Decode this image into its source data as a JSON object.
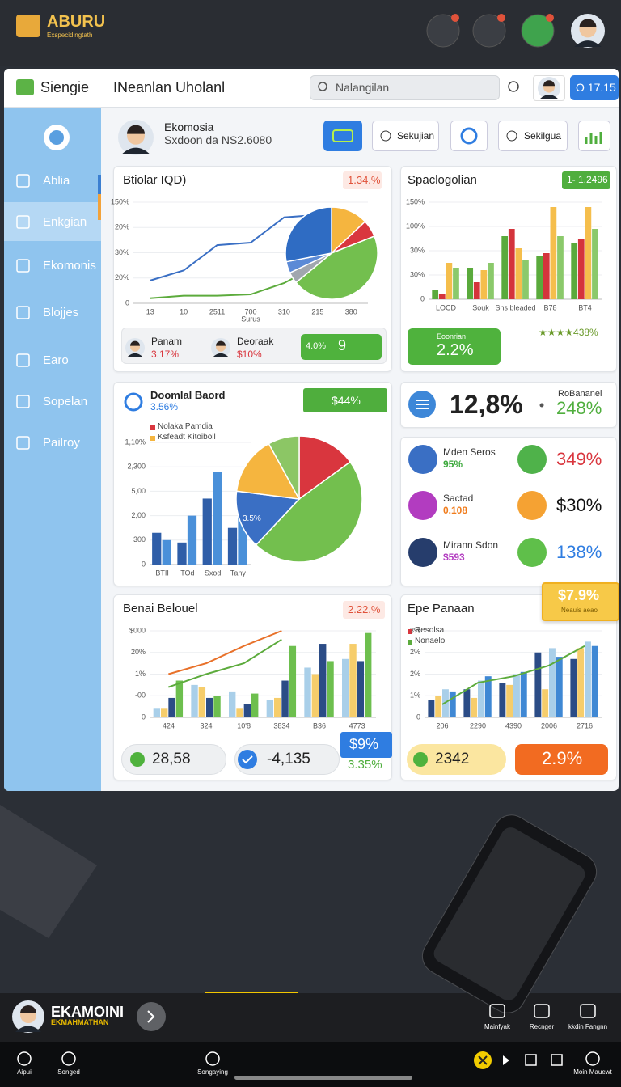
{
  "top_bar": {
    "logo": "ABURU",
    "logo_sub": "Exspecidingtath"
  },
  "app_header": {
    "brand": "Siengie",
    "title": "INeanlan Uholanl",
    "search": "Nalangilan",
    "badge": "O 17.15"
  },
  "sidebar": {
    "items": [
      "Ablia",
      "Enkgian",
      "Ekomonis",
      "Blojjes",
      "Earo",
      "Sopelan",
      "Pailroy"
    ]
  },
  "profile": {
    "name": "Ekomosia",
    "detail": "Sxdoon da NS2.6080",
    "buttons": [
      "Sekujian",
      "Sekilgua"
    ]
  },
  "panel_1": {
    "title": "Btiolar IQD)",
    "badge": "1.34.%",
    "line_chart": {
      "type": "line",
      "categories": [
        "13",
        "10",
        "2511",
        "700",
        "310",
        "215",
        "380"
      ],
      "xlabel": "Surus",
      "ylim": [
        0,
        4
      ],
      "yticks": [
        0,
        {
          "value": 1,
          "label": "20%"
        },
        {
          "value": 2,
          "label": "30%"
        },
        {
          "value": 3,
          "label": "20%"
        },
        {
          "value": 4,
          "label": "150%"
        }
      ],
      "series": [
        {
          "color": "#3a6fc4",
          "values": [
            0.9,
            1.3,
            2.3,
            2.4,
            3.4,
            3.5,
            null
          ]
        },
        {
          "color": "#5cab3c",
          "values": [
            0.2,
            0.3,
            0.3,
            0.35,
            0.8,
            1.5,
            3.0
          ]
        }
      ]
    },
    "pie_chart": {
      "type": "pie",
      "values": [
        13,
        6,
        45,
        4,
        4,
        28
      ],
      "colors": [
        "#f5b53f",
        "#d9363e",
        "#73bf4e",
        "#a0a6ae",
        "#5b8ad6",
        "#2f6cc3"
      ]
    },
    "people": [
      {
        "name": "Panam",
        "value": "3.17%"
      },
      {
        "name": "Deoraak",
        "value": "$10%"
      }
    ],
    "pill": {
      "label": "4.0%",
      "value": "9"
    }
  },
  "panel_2": {
    "title": "Spaclogolian",
    "badge": "1- 1.2496",
    "bar_chart": {
      "type": "bar",
      "categories": [
        "LOCD",
        "Souk",
        "Sns bleaded",
        "B78",
        "BT4"
      ],
      "ylim": [
        0,
        4
      ],
      "yticks": [
        0,
        {
          "value": 1,
          "label": "30%"
        },
        {
          "value": 2,
          "label": "30%"
        },
        {
          "value": 3,
          "label": "100%"
        },
        {
          "value": 4,
          "label": "150%"
        }
      ],
      "series": [
        {
          "color": "#5aaa3c",
          "values": [
            0.4,
            1.3,
            2.6,
            1.8,
            2.3
          ]
        },
        {
          "color": "#d4343c",
          "values": [
            0.2,
            0.7,
            2.9,
            1.9,
            2.5
          ]
        },
        {
          "color": "#f5be4c",
          "values": [
            1.5,
            1.2,
            2.1,
            3.8,
            3.8
          ]
        },
        {
          "color": "#8bc96b",
          "values": [
            1.3,
            1.5,
            1.6,
            2.6,
            2.9
          ]
        }
      ]
    },
    "box": {
      "label": "Eoonrian",
      "value": "2.2%"
    },
    "rating": "★★★★438%"
  },
  "panel_3": {
    "title": "Doomlal Baord",
    "subtitle": "3.56%",
    "badge": "$44%",
    "legend": [
      {
        "name": "Nolaka Pamdia",
        "color": "#d9363e"
      },
      {
        "name": "Ksfeadt Kitoiboll",
        "color": "#f5b53f"
      }
    ],
    "bar_chart": {
      "type": "bar",
      "categories": [
        "BTII",
        "TOd",
        "Sxod",
        "Tany"
      ],
      "ylim": [
        0,
        5
      ],
      "yticks": [
        0,
        {
          "value": 1,
          "label": "300"
        },
        {
          "value": 2,
          "label": "2,00"
        },
        {
          "value": 3,
          "label": "5,00"
        },
        {
          "value": 4,
          "label": "2,300"
        },
        {
          "value": 5,
          "label": "1,10%"
        }
      ],
      "series": [
        {
          "color": "#2f5ea8",
          "values": [
            1.3,
            0.9,
            2.7,
            1.5
          ]
        },
        {
          "color": "#4a90d9",
          "values": [
            1.0,
            2.0,
            3.8,
            2.4
          ]
        }
      ]
    },
    "pie_chart": {
      "type": "pie",
      "values": [
        15,
        47,
        15,
        15,
        8
      ],
      "colors": [
        "#d9363e",
        "#73bf4e",
        "#3a6fc4",
        "#f5b53f",
        "#8cc665"
      ],
      "annotation": "3.5%"
    }
  },
  "panel_4": {
    "value": "12,8%",
    "label": "RoBananel",
    "change": "248%"
  },
  "panel_5": {
    "rows": [
      {
        "name": "Mden Seros",
        "value": "95%",
        "change": "349%"
      },
      {
        "name": "Sactad",
        "value": "0.108",
        "change": "$30%"
      },
      {
        "name": "Mirann Sdon",
        "value": "$593",
        "change": "138%"
      }
    ]
  },
  "panel_6": {
    "title": "Benai Belouel",
    "badge": "2.22.%",
    "bar_chart": {
      "type": "bar",
      "categories": [
        "424",
        "324",
        "10'8",
        "3834",
        "B36",
        "4773"
      ],
      "ylim": [
        0,
        4
      ],
      "yticks": [
        0,
        {
          "value": 1,
          "label": "-00"
        },
        {
          "value": 2,
          "label": "1%"
        },
        {
          "value": 3,
          "label": "20%"
        },
        {
          "value": 4,
          "label": "$000"
        }
      ],
      "series": [
        {
          "color": "#a9cfe9",
          "values": [
            0.4,
            1.5,
            1.2,
            0.8,
            2.3,
            2.7
          ]
        },
        {
          "color": "#f6cd6b",
          "values": [
            0.4,
            1.4,
            0.4,
            0.9,
            2.0,
            3.4
          ]
        },
        {
          "color": "#2b4c86",
          "values": [
            0.9,
            0.9,
            0.6,
            1.7,
            3.4,
            2.6
          ]
        },
        {
          "color": "#6dbf4e",
          "values": [
            1.7,
            1.0,
            1.1,
            3.3,
            2.6,
            3.9
          ]
        },
        {
          "type": "line",
          "color": "#e8712a",
          "values": [
            2.0,
            2.5,
            3.3,
            4.0,
            null,
            null
          ]
        },
        {
          "type": "line",
          "color": "#5cab3c",
          "values": [
            1.4,
            2.0,
            2.5,
            3.6,
            null,
            null
          ]
        }
      ]
    },
    "stats": [
      "28,58",
      "-4,135"
    ],
    "badge_box": {
      "value": "$9%",
      "change": "3.35%"
    }
  },
  "panel_7": {
    "title": "Epe Panaan",
    "floating_badge": {
      "value": "$7.9%",
      "label": "Neauis aeao"
    },
    "legend": [
      {
        "name": "Resolsa",
        "color": "#d9363e"
      },
      {
        "name": "Nonaelo",
        "color": "#5cab3c"
      }
    ],
    "bar_chart": {
      "type": "bar",
      "categories": [
        "206",
        "2290",
        "4390",
        "2006",
        "2716"
      ],
      "ylim": [
        0,
        4
      ],
      "yticks": [
        0,
        {
          "value": 1,
          "label": "1%"
        },
        {
          "value": 2,
          "label": "2%"
        },
        {
          "value": 3,
          "label": "2%"
        },
        {
          "value": 4,
          "label": "3%"
        }
      ],
      "series": [
        {
          "color": "#2b4c86",
          "values": [
            0.8,
            1.3,
            1.6,
            3.0,
            2.7
          ]
        },
        {
          "color": "#f6cd6b",
          "values": [
            1.0,
            0.9,
            1.5,
            1.3,
            3.2
          ]
        },
        {
          "color": "#a9cfe9",
          "values": [
            1.3,
            1.7,
            2.0,
            3.2,
            3.5
          ]
        },
        {
          "color": "#3f88d4",
          "values": [
            1.2,
            1.9,
            2.1,
            2.8,
            3.3
          ]
        },
        {
          "type": "line",
          "color": "#5cab3c",
          "values": [
            0.6,
            1.6,
            1.9,
            2.4,
            3.3
          ]
        }
      ]
    },
    "stats": [
      "2342",
      "2.9%"
    ]
  },
  "bottom_bar": {
    "name": "EKAMOINI",
    "subtitle": "EKMAHMATHAN",
    "actions": [
      "Mainfyak",
      "Recnger",
      "kkdin Fangnn"
    ]
  },
  "nav": {
    "items": [
      "Aipui",
      "Songed",
      "Songaying",
      "Moin Mauewt"
    ]
  }
}
